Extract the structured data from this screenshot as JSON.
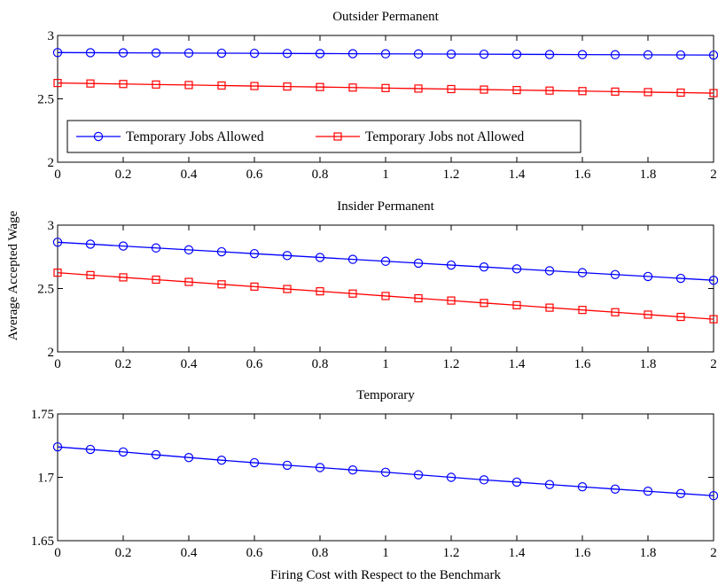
{
  "figure": {
    "ylabel": "Average Accepted Wage",
    "xlabel": "Firing Cost with Respect to the Benchmark"
  },
  "legend": [
    {
      "name": "Temporary Jobs Allowed",
      "color": "#0000ff",
      "marker": "circle"
    },
    {
      "name": "Temporary Jobs not Allowed",
      "color": "#ff0000",
      "marker": "square"
    }
  ],
  "chart_data": [
    {
      "type": "line",
      "title": "Outsider Permanent",
      "x": [
        0,
        0.1,
        0.2,
        0.3,
        0.4,
        0.5,
        0.6,
        0.7,
        0.8,
        0.9,
        1,
        1.1,
        1.2,
        1.3,
        1.4,
        1.5,
        1.6,
        1.7,
        1.8,
        1.9,
        2
      ],
      "xlim": [
        0,
        2
      ],
      "ylim": [
        2,
        3
      ],
      "xticks": [
        "0",
        "0.2",
        "0.4",
        "0.6",
        "0.8",
        "1",
        "1.2",
        "1.4",
        "1.6",
        "1.8",
        "2"
      ],
      "yticks": [
        "2",
        "2.5",
        "3"
      ],
      "legend_position": "lower-left",
      "series": [
        {
          "name": "Temporary Jobs Allowed",
          "color": "#0000ff",
          "marker": "circle",
          "values": [
            2.865,
            2.864,
            2.863,
            2.862,
            2.861,
            2.86,
            2.859,
            2.858,
            2.857,
            2.856,
            2.855,
            2.854,
            2.853,
            2.852,
            2.851,
            2.85,
            2.849,
            2.848,
            2.847,
            2.846,
            2.845
          ]
        },
        {
          "name": "Temporary Jobs not Allowed",
          "color": "#ff0000",
          "marker": "square",
          "values": [
            2.625,
            2.621,
            2.617,
            2.613,
            2.609,
            2.605,
            2.601,
            2.597,
            2.593,
            2.589,
            2.585,
            2.581,
            2.577,
            2.573,
            2.569,
            2.565,
            2.561,
            2.557,
            2.553,
            2.549,
            2.545
          ]
        }
      ]
    },
    {
      "type": "line",
      "title": "Insider Permanent",
      "x": [
        0,
        0.1,
        0.2,
        0.3,
        0.4,
        0.5,
        0.6,
        0.7,
        0.8,
        0.9,
        1,
        1.1,
        1.2,
        1.3,
        1.4,
        1.5,
        1.6,
        1.7,
        1.8,
        1.9,
        2
      ],
      "xlim": [
        0,
        2
      ],
      "ylim": [
        2,
        3
      ],
      "xticks": [
        "0",
        "0.2",
        "0.4",
        "0.6",
        "0.8",
        "1",
        "1.2",
        "1.4",
        "1.6",
        "1.8",
        "2"
      ],
      "yticks": [
        "2",
        "2.5",
        "3"
      ],
      "series": [
        {
          "name": "Temporary Jobs Allowed",
          "color": "#0000ff",
          "marker": "circle",
          "values": [
            2.865,
            2.85,
            2.835,
            2.82,
            2.805,
            2.79,
            2.775,
            2.76,
            2.745,
            2.73,
            2.715,
            2.7,
            2.685,
            2.67,
            2.655,
            2.64,
            2.625,
            2.61,
            2.595,
            2.58,
            2.565
          ]
        },
        {
          "name": "Temporary Jobs not Allowed",
          "color": "#ff0000",
          "marker": "square",
          "values": [
            2.625,
            2.606,
            2.588,
            2.57,
            2.552,
            2.533,
            2.515,
            2.496,
            2.478,
            2.46,
            2.441,
            2.423,
            2.405,
            2.386,
            2.368,
            2.349,
            2.331,
            2.313,
            2.294,
            2.276,
            2.258
          ]
        }
      ]
    },
    {
      "type": "line",
      "title": "Temporary",
      "x": [
        0,
        0.1,
        0.2,
        0.3,
        0.4,
        0.5,
        0.6,
        0.7,
        0.8,
        0.9,
        1,
        1.1,
        1.2,
        1.3,
        1.4,
        1.5,
        1.6,
        1.7,
        1.8,
        1.9,
        2
      ],
      "xlim": [
        0,
        2
      ],
      "ylim": [
        1.65,
        1.75
      ],
      "xticks": [
        "0",
        "0.2",
        "0.4",
        "0.6",
        "0.8",
        "1",
        "1.2",
        "1.4",
        "1.6",
        "1.8",
        "2"
      ],
      "yticks": [
        "1.65",
        "1.7",
        "1.75"
      ],
      "series": [
        {
          "name": "Temporary Jobs Allowed",
          "color": "#0000ff",
          "marker": "circle",
          "values": [
            1.724,
            1.722,
            1.72,
            1.7178,
            1.7156,
            1.7135,
            1.7115,
            1.7095,
            1.7077,
            1.7058,
            1.704,
            1.702,
            1.7,
            1.698,
            1.6962,
            1.6943,
            1.6925,
            1.6907,
            1.689,
            1.6872,
            1.6855
          ]
        }
      ]
    }
  ]
}
